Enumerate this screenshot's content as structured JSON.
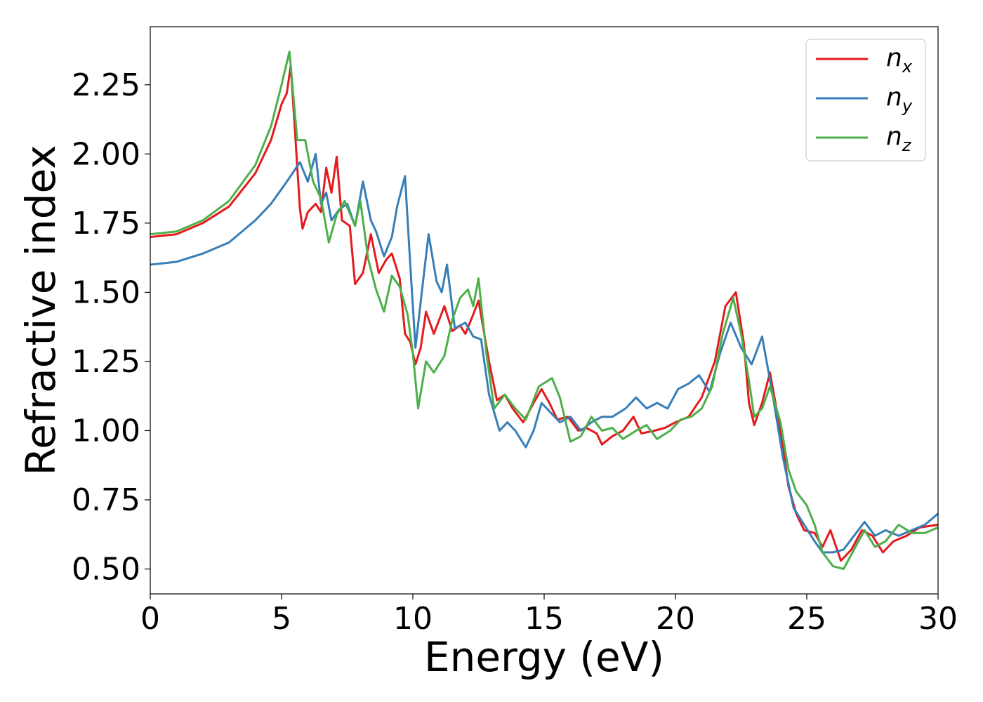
{
  "chart_data": {
    "type": "line",
    "title": "",
    "xlabel": "Energy (eV)",
    "ylabel": "Refractive index",
    "xlim": [
      0,
      30
    ],
    "ylim": [
      0.41,
      2.46
    ],
    "xticks": [
      0,
      5,
      10,
      15,
      20,
      25,
      30
    ],
    "xtick_labels": [
      "0",
      "5",
      "10",
      "15",
      "20",
      "25",
      "30"
    ],
    "yticks": [
      0.5,
      0.75,
      1.0,
      1.25,
      1.5,
      1.75,
      2.0,
      2.25
    ],
    "ytick_labels": [
      "0.50",
      "0.75",
      "1.00",
      "1.25",
      "1.50",
      "1.75",
      "2.00",
      "2.25"
    ],
    "grid": false,
    "legend_position": "top-right",
    "series": [
      {
        "name": "n_x",
        "legend_base": "n",
        "legend_sub": "x",
        "color": "#e41a1c",
        "points": [
          [
            0,
            1.7
          ],
          [
            1,
            1.71
          ],
          [
            2,
            1.75
          ],
          [
            3,
            1.81
          ],
          [
            4,
            1.93
          ],
          [
            4.6,
            2.05
          ],
          [
            5.0,
            2.18
          ],
          [
            5.2,
            2.22
          ],
          [
            5.35,
            2.32
          ],
          [
            5.5,
            2.1
          ],
          [
            5.7,
            1.8
          ],
          [
            5.8,
            1.73
          ],
          [
            6.0,
            1.79
          ],
          [
            6.3,
            1.82
          ],
          [
            6.5,
            1.79
          ],
          [
            6.7,
            1.95
          ],
          [
            6.9,
            1.86
          ],
          [
            7.1,
            1.99
          ],
          [
            7.3,
            1.76
          ],
          [
            7.6,
            1.74
          ],
          [
            7.8,
            1.53
          ],
          [
            8.1,
            1.57
          ],
          [
            8.4,
            1.71
          ],
          [
            8.7,
            1.57
          ],
          [
            9.0,
            1.62
          ],
          [
            9.2,
            1.64
          ],
          [
            9.5,
            1.55
          ],
          [
            9.7,
            1.35
          ],
          [
            9.9,
            1.32
          ],
          [
            10.1,
            1.24
          ],
          [
            10.3,
            1.3
          ],
          [
            10.5,
            1.43
          ],
          [
            10.8,
            1.35
          ],
          [
            11.2,
            1.45
          ],
          [
            11.5,
            1.36
          ],
          [
            11.8,
            1.38
          ],
          [
            12.0,
            1.35
          ],
          [
            12.3,
            1.42
          ],
          [
            12.5,
            1.47
          ],
          [
            12.9,
            1.25
          ],
          [
            13.2,
            1.11
          ],
          [
            13.5,
            1.13
          ],
          [
            13.8,
            1.08
          ],
          [
            14.2,
            1.03
          ],
          [
            14.6,
            1.1
          ],
          [
            14.9,
            1.15
          ],
          [
            15.2,
            1.1
          ],
          [
            15.5,
            1.04
          ],
          [
            15.9,
            1.05
          ],
          [
            16.3,
            1.0
          ],
          [
            16.6,
            1.01
          ],
          [
            17.0,
            0.99
          ],
          [
            17.2,
            0.95
          ],
          [
            17.6,
            0.98
          ],
          [
            18.0,
            1.0
          ],
          [
            18.4,
            1.05
          ],
          [
            18.7,
            0.99
          ],
          [
            19.2,
            1.0
          ],
          [
            19.6,
            1.01
          ],
          [
            20.0,
            1.03
          ],
          [
            20.5,
            1.05
          ],
          [
            21.0,
            1.12
          ],
          [
            21.5,
            1.25
          ],
          [
            21.9,
            1.45
          ],
          [
            22.3,
            1.5
          ],
          [
            22.6,
            1.32
          ],
          [
            22.8,
            1.1
          ],
          [
            23.0,
            1.02
          ],
          [
            23.3,
            1.1
          ],
          [
            23.6,
            1.21
          ],
          [
            24.0,
            1.0
          ],
          [
            24.3,
            0.8
          ],
          [
            24.6,
            0.7
          ],
          [
            24.9,
            0.64
          ],
          [
            25.3,
            0.63
          ],
          [
            25.6,
            0.58
          ],
          [
            25.9,
            0.64
          ],
          [
            26.3,
            0.53
          ],
          [
            26.7,
            0.57
          ],
          [
            27.1,
            0.64
          ],
          [
            27.5,
            0.62
          ],
          [
            27.9,
            0.56
          ],
          [
            28.3,
            0.6
          ],
          [
            28.8,
            0.62
          ],
          [
            29.3,
            0.65
          ],
          [
            30.0,
            0.66
          ]
        ]
      },
      {
        "name": "n_y",
        "legend_base": "n",
        "legend_sub": "y",
        "color": "#377eb8",
        "points": [
          [
            0,
            1.6
          ],
          [
            1,
            1.61
          ],
          [
            2,
            1.64
          ],
          [
            3,
            1.68
          ],
          [
            4,
            1.76
          ],
          [
            4.6,
            1.82
          ],
          [
            5.2,
            1.9
          ],
          [
            5.7,
            1.97
          ],
          [
            6.0,
            1.9
          ],
          [
            6.3,
            2.0
          ],
          [
            6.5,
            1.82
          ],
          [
            6.7,
            1.86
          ],
          [
            6.9,
            1.76
          ],
          [
            7.2,
            1.8
          ],
          [
            7.5,
            1.82
          ],
          [
            7.8,
            1.74
          ],
          [
            8.1,
            1.9
          ],
          [
            8.4,
            1.76
          ],
          [
            8.6,
            1.72
          ],
          [
            8.9,
            1.63
          ],
          [
            9.2,
            1.7
          ],
          [
            9.4,
            1.81
          ],
          [
            9.7,
            1.92
          ],
          [
            9.9,
            1.6
          ],
          [
            10.1,
            1.3
          ],
          [
            10.4,
            1.55
          ],
          [
            10.6,
            1.71
          ],
          [
            10.9,
            1.54
          ],
          [
            11.1,
            1.5
          ],
          [
            11.3,
            1.6
          ],
          [
            11.6,
            1.37
          ],
          [
            12.0,
            1.39
          ],
          [
            12.3,
            1.34
          ],
          [
            12.6,
            1.33
          ],
          [
            12.9,
            1.13
          ],
          [
            13.3,
            1.0
          ],
          [
            13.6,
            1.03
          ],
          [
            13.9,
            1.0
          ],
          [
            14.3,
            0.94
          ],
          [
            14.6,
            1.0
          ],
          [
            14.9,
            1.1
          ],
          [
            15.2,
            1.07
          ],
          [
            15.6,
            1.03
          ],
          [
            16.0,
            1.05
          ],
          [
            16.4,
            1.0
          ],
          [
            16.8,
            1.03
          ],
          [
            17.2,
            1.05
          ],
          [
            17.6,
            1.05
          ],
          [
            18.1,
            1.08
          ],
          [
            18.5,
            1.12
          ],
          [
            18.9,
            1.08
          ],
          [
            19.3,
            1.1
          ],
          [
            19.7,
            1.08
          ],
          [
            20.1,
            1.15
          ],
          [
            20.5,
            1.17
          ],
          [
            20.9,
            1.2
          ],
          [
            21.3,
            1.14
          ],
          [
            21.7,
            1.28
          ],
          [
            22.1,
            1.39
          ],
          [
            22.5,
            1.3
          ],
          [
            22.9,
            1.24
          ],
          [
            23.3,
            1.34
          ],
          [
            23.7,
            1.13
          ],
          [
            24.1,
            0.9
          ],
          [
            24.5,
            0.72
          ],
          [
            24.9,
            0.66
          ],
          [
            25.3,
            0.6
          ],
          [
            25.6,
            0.56
          ],
          [
            26.0,
            0.56
          ],
          [
            26.4,
            0.57
          ],
          [
            26.8,
            0.62
          ],
          [
            27.2,
            0.67
          ],
          [
            27.6,
            0.62
          ],
          [
            28.0,
            0.64
          ],
          [
            28.5,
            0.62
          ],
          [
            29.0,
            0.64
          ],
          [
            29.5,
            0.66
          ],
          [
            30.0,
            0.7
          ]
        ]
      },
      {
        "name": "n_z",
        "legend_base": "n",
        "legend_sub": "z",
        "color": "#4daf4a",
        "points": [
          [
            0,
            1.71
          ],
          [
            1,
            1.72
          ],
          [
            2,
            1.76
          ],
          [
            3,
            1.83
          ],
          [
            4,
            1.96
          ],
          [
            4.6,
            2.1
          ],
          [
            5.0,
            2.25
          ],
          [
            5.3,
            2.37
          ],
          [
            5.6,
            2.05
          ],
          [
            5.9,
            2.05
          ],
          [
            6.2,
            1.9
          ],
          [
            6.5,
            1.84
          ],
          [
            6.8,
            1.68
          ],
          [
            7.1,
            1.78
          ],
          [
            7.4,
            1.83
          ],
          [
            7.8,
            1.74
          ],
          [
            8.0,
            1.83
          ],
          [
            8.3,
            1.62
          ],
          [
            8.6,
            1.51
          ],
          [
            8.9,
            1.43
          ],
          [
            9.2,
            1.56
          ],
          [
            9.5,
            1.52
          ],
          [
            9.8,
            1.42
          ],
          [
            10.0,
            1.28
          ],
          [
            10.2,
            1.08
          ],
          [
            10.5,
            1.25
          ],
          [
            10.8,
            1.21
          ],
          [
            11.2,
            1.27
          ],
          [
            11.5,
            1.4
          ],
          [
            11.8,
            1.48
          ],
          [
            12.1,
            1.51
          ],
          [
            12.3,
            1.45
          ],
          [
            12.5,
            1.55
          ],
          [
            12.8,
            1.28
          ],
          [
            13.1,
            1.08
          ],
          [
            13.5,
            1.13
          ],
          [
            13.9,
            1.08
          ],
          [
            14.3,
            1.04
          ],
          [
            14.8,
            1.16
          ],
          [
            15.3,
            1.19
          ],
          [
            15.6,
            1.12
          ],
          [
            16.0,
            0.96
          ],
          [
            16.4,
            0.98
          ],
          [
            16.8,
            1.05
          ],
          [
            17.2,
            1.0
          ],
          [
            17.6,
            1.01
          ],
          [
            18.0,
            0.97
          ],
          [
            18.5,
            1.0
          ],
          [
            18.9,
            1.02
          ],
          [
            19.3,
            0.97
          ],
          [
            19.8,
            1.0
          ],
          [
            20.2,
            1.04
          ],
          [
            20.6,
            1.05
          ],
          [
            21.0,
            1.08
          ],
          [
            21.4,
            1.16
          ],
          [
            21.8,
            1.35
          ],
          [
            22.2,
            1.48
          ],
          [
            22.5,
            1.35
          ],
          [
            22.8,
            1.18
          ],
          [
            23.0,
            1.05
          ],
          [
            23.3,
            1.08
          ],
          [
            23.6,
            1.16
          ],
          [
            24.0,
            1.03
          ],
          [
            24.3,
            0.86
          ],
          [
            24.6,
            0.78
          ],
          [
            25.0,
            0.73
          ],
          [
            25.3,
            0.66
          ],
          [
            25.6,
            0.56
          ],
          [
            26.0,
            0.51
          ],
          [
            26.4,
            0.5
          ],
          [
            26.8,
            0.57
          ],
          [
            27.2,
            0.64
          ],
          [
            27.6,
            0.58
          ],
          [
            28.0,
            0.6
          ],
          [
            28.5,
            0.66
          ],
          [
            29.0,
            0.63
          ],
          [
            29.5,
            0.63
          ],
          [
            30.0,
            0.65
          ]
        ]
      }
    ]
  }
}
